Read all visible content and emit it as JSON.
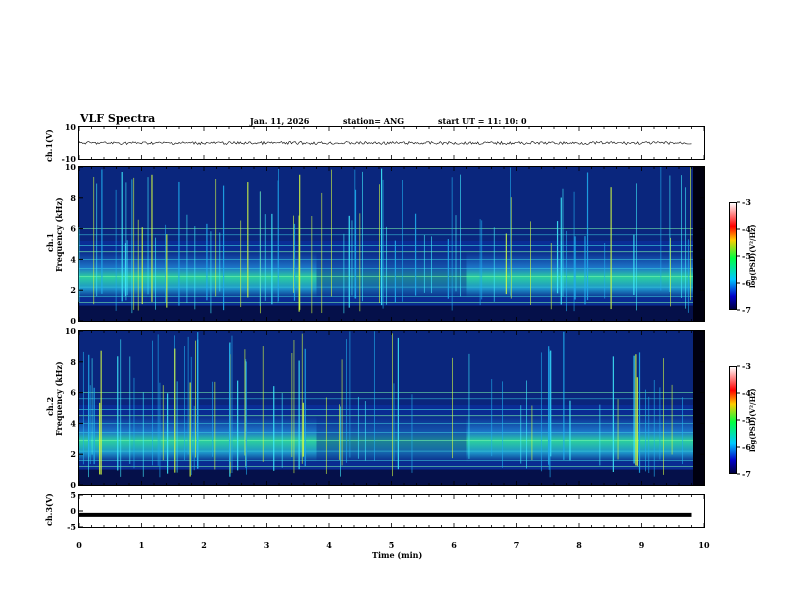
{
  "header": {
    "title": "VLF Spectra",
    "date": "Jan. 11, 2026",
    "station": "station= ANG",
    "start_ut": "start  UT =  11: 10: 0"
  },
  "chart_data": [
    {
      "type": "line",
      "panel": "ch1-waveform",
      "ylabel": "ch.1(V)",
      "ylim": [
        -10,
        10
      ],
      "yticks": [
        "10",
        "-10"
      ],
      "x": [
        0,
        9.8
      ],
      "y": [
        0,
        0
      ],
      "grid": false
    },
    {
      "type": "heatmap",
      "panel": "ch1-spectrogram",
      "ylabel": "ch.1\nFrequency (kHz)",
      "ylim": [
        0,
        10
      ],
      "yticks": [
        "10",
        "8",
        "6",
        "4",
        "2",
        "0"
      ],
      "xlim": [
        0,
        10
      ],
      "dominant_band_khz": [
        1.5,
        4.5
      ],
      "colorbar": {
        "label": "log(PSD)(V²/Hz)",
        "range": [
          -7,
          -3
        ],
        "ticks": [
          "-3",
          "-4",
          "-5",
          "-6",
          "-7"
        ]
      }
    },
    {
      "type": "heatmap",
      "panel": "ch2-spectrogram",
      "ylabel": "ch.2\nFrequency (kHz)",
      "ylim": [
        0,
        10
      ],
      "yticks": [
        "10",
        "8",
        "6",
        "4",
        "2",
        "0"
      ],
      "xlim": [
        0,
        10
      ],
      "dominant_band_khz": [
        1.5,
        4.5
      ],
      "colorbar": {
        "label": "log(PSD)(V²/Hz)",
        "range": [
          -7,
          -3
        ],
        "ticks": [
          "-3",
          "-4",
          "-5",
          "-6",
          "-7"
        ]
      }
    },
    {
      "type": "line",
      "panel": "ch3-waveform",
      "ylabel": "ch.3(V)",
      "ylim": [
        -5,
        5
      ],
      "yticks": [
        "5",
        "0",
        "-5"
      ],
      "xlabel": "Time (min)",
      "xlim": [
        0,
        10
      ],
      "xticks": [
        "0",
        "1",
        "2",
        "3",
        "4",
        "5",
        "6",
        "7",
        "8",
        "9",
        "10"
      ],
      "x": [
        0,
        9.8
      ],
      "y": [
        -1.2,
        -1.2
      ],
      "grid": false
    }
  ],
  "colors": {
    "background": "#05104a",
    "band": "#2fe0a0",
    "line": "#000000"
  }
}
